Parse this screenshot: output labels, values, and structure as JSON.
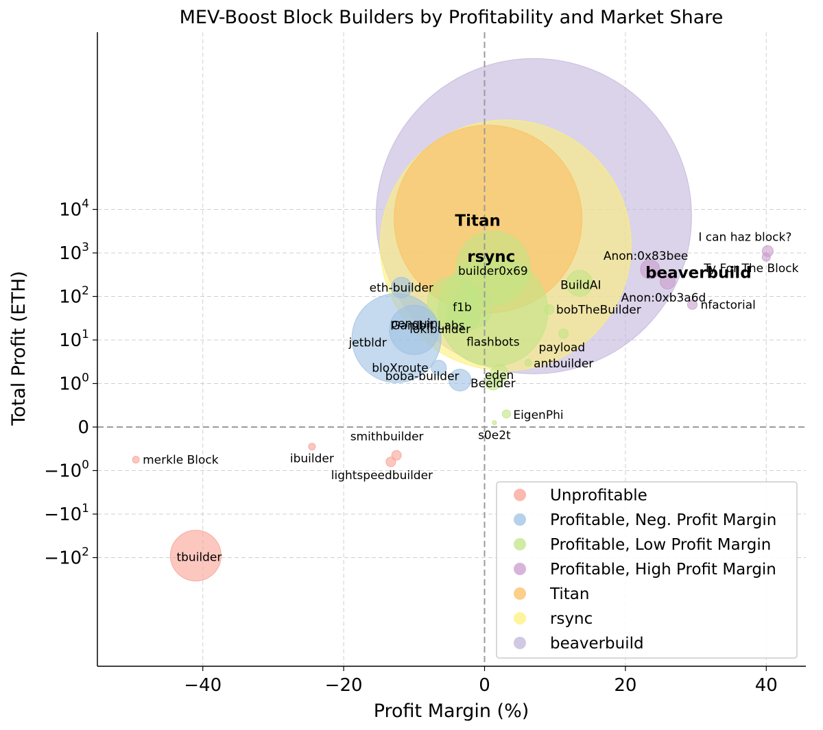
{
  "chart_data": {
    "type": "scatter",
    "title": "MEV-Boost Block Builders by Profitability and Market Share",
    "xlabel": "Profit Margin (%)",
    "ylabel": "Total Profit (ETH)",
    "xlim": [
      -53,
      45
    ],
    "y_scale": "symlog (linthresh 1)",
    "grid": true,
    "legend_position": "bottom-right",
    "x_ticks": [
      "−40",
      "−20",
      "0",
      "20",
      "40"
    ],
    "y_ticks": [
      {
        "base": "−10",
        "exp": "2"
      },
      {
        "base": "−10",
        "exp": "1"
      },
      {
        "base": "−10",
        "exp": "0"
      },
      {
        "base": "0",
        "exp": ""
      },
      {
        "base": "10",
        "exp": "0"
      },
      {
        "base": "10",
        "exp": "1"
      },
      {
        "base": "10",
        "exp": "2"
      },
      {
        "base": "10",
        "exp": "3"
      },
      {
        "base": "10",
        "exp": "4"
      }
    ],
    "categories": [
      {
        "name": "Unprofitable",
        "color": "#f9a195"
      },
      {
        "name": "Profitable, Neg. Profit Margin",
        "color": "#9ec2e3"
      },
      {
        "name": "Profitable, Low Profit Margin",
        "color": "#c2e486"
      },
      {
        "name": "Profitable, High Profit Margin",
        "color": "#c99ccd"
      },
      {
        "name": "Titan",
        "color": "#fbbf63"
      },
      {
        "name": "rsync",
        "color": "#fdf07a"
      },
      {
        "name": "beaverbuild",
        "color": "#c2b6da"
      }
    ],
    "points": [
      {
        "label": "beaverbuild",
        "x": 7,
        "y": 7000,
        "size": 230,
        "category": "beaverbuild",
        "bold": true
      },
      {
        "label": "rsync",
        "x": 3,
        "y": 1500,
        "size": 183,
        "category": "rsync",
        "bold": true
      },
      {
        "label": "Titan",
        "x": 0.5,
        "y": 6000,
        "size": 137,
        "category": "Titan",
        "bold": true
      },
      {
        "label": "builder0x69",
        "x": 1.2,
        "y": 450,
        "size": 54,
        "category": "Profitable, Low Profit Margin"
      },
      {
        "label": "flashbots",
        "x": 1.2,
        "y": 45,
        "size": 80,
        "category": "Profitable, Low Profit Margin"
      },
      {
        "label": "Gambit Labs",
        "x": -4.5,
        "y": 75,
        "size": 37,
        "category": "Profitable, Low Profit Margin"
      },
      {
        "label": "f1b",
        "x": -2,
        "y": 55,
        "size": 31,
        "category": "Profitable, Low Profit Margin"
      },
      {
        "label": "lokibuilder",
        "x": -3,
        "y": 38,
        "size": 25,
        "category": "Profitable, Low Profit Margin"
      },
      {
        "label": "BuildAI",
        "x": 13.5,
        "y": 200,
        "size": 19,
        "category": "Profitable, Low Profit Margin"
      },
      {
        "label": "bobTheBuilder",
        "x": 9.2,
        "y": 50,
        "size": 7,
        "category": "Profitable, Low Profit Margin"
      },
      {
        "label": "payload",
        "x": 11.2,
        "y": 14,
        "size": 7,
        "category": "Profitable, Low Profit Margin"
      },
      {
        "label": "antbuilder",
        "x": 6.2,
        "y": 3,
        "size": 5,
        "category": "Profitable, Low Profit Margin"
      },
      {
        "label": "eden",
        "x": 2.1,
        "y": 1.7,
        "size": 13,
        "category": "Profitable, Low Profit Margin"
      },
      {
        "label": "Beelder",
        "x": 1.2,
        "y": 1.1,
        "size": 12,
        "category": "Profitable, Low Profit Margin"
      },
      {
        "label": "EigenPhi",
        "x": 3.1,
        "y": 0.3,
        "size": 6,
        "category": "Profitable, Low Profit Margin"
      },
      {
        "label": "s0e2t",
        "x": 1.4,
        "y": 0.1,
        "size": 3,
        "category": "Profitable, Low Profit Margin"
      },
      {
        "label": "jetbldr",
        "x": -12.5,
        "y": 11,
        "size": 65,
        "category": "Profitable, Neg. Profit Margin"
      },
      {
        "label": "penguin",
        "x": -10,
        "y": 17,
        "size": 36,
        "category": "Profitable, Neg. Profit Margin"
      },
      {
        "label": "eth-builder",
        "x": -11.8,
        "y": 160,
        "size": 15,
        "category": "Profitable, Neg. Profit Margin"
      },
      {
        "label": "bloXroute",
        "x": -6.5,
        "y": 2.3,
        "size": 11,
        "category": "Profitable, Neg. Profit Margin"
      },
      {
        "label": "boba-builder",
        "x": -3.5,
        "y": 1.2,
        "size": 16,
        "category": "Profitable, Neg. Profit Margin"
      },
      {
        "label": "I can haz block?",
        "x": 40.2,
        "y": 1100,
        "size": 8,
        "category": "Profitable, High Profit Margin"
      },
      {
        "label": "Ty For The Block",
        "x": 40,
        "y": 800,
        "size": 6,
        "category": "Profitable, High Profit Margin"
      },
      {
        "label": "Anon:0x83bee",
        "x": 23.5,
        "y": 420,
        "size": 14,
        "category": "Profitable, High Profit Margin"
      },
      {
        "label": "Anon:0xb3a6d",
        "x": 26,
        "y": 220,
        "size": 11,
        "category": "Profitable, High Profit Margin"
      },
      {
        "label": "nfactorial",
        "x": 29.5,
        "y": 65,
        "size": 7,
        "category": "Profitable, High Profit Margin"
      },
      {
        "label": "tbuilder",
        "x": -41,
        "y": -90,
        "size": 37,
        "category": "Unprofitable"
      },
      {
        "label": "merkle Block",
        "x": -49.5,
        "y": -0.75,
        "size": 5,
        "category": "Unprofitable"
      },
      {
        "label": "ibuilder",
        "x": -24.5,
        "y": -0.45,
        "size": 5,
        "category": "Unprofitable"
      },
      {
        "label": "smithbuilder",
        "x": -12.5,
        "y": -0.65,
        "size": 7,
        "category": "Unprofitable"
      },
      {
        "label": "lightspeedbuilder",
        "x": -13.3,
        "y": -0.8,
        "size": 7,
        "category": "Unprofitable"
      }
    ]
  }
}
